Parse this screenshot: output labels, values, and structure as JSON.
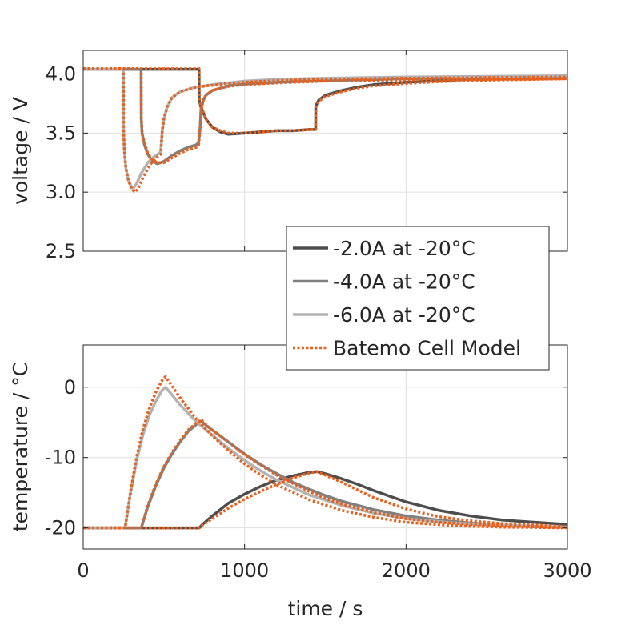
{
  "chart_data": [
    {
      "type": "line",
      "ylabel": "voltage / V",
      "xlim": [
        0,
        3000
      ],
      "ylim": [
        2.5,
        4.2
      ],
      "yticks": [
        2.5,
        3.0,
        3.5,
        4.0
      ],
      "ytick_labels": [
        "2.5",
        "3.0",
        "3.5",
        "4.0"
      ],
      "xticks": [
        0,
        1000,
        2000,
        3000
      ],
      "grid": true,
      "series": [
        {
          "name": "-2.0A at -20°C",
          "color": "#4d4d4d",
          "style": "solid",
          "x": [
            0,
            718,
            719,
            730,
            760,
            800,
            850,
            900,
            1000,
            1100,
            1200,
            1300,
            1400,
            1440,
            1441,
            1460,
            1500,
            1600,
            1700,
            1800,
            2000,
            2200,
            2400,
            2600,
            2800,
            3000
          ],
          "y": [
            4.04,
            4.04,
            3.78,
            3.72,
            3.62,
            3.55,
            3.51,
            3.49,
            3.5,
            3.51,
            3.52,
            3.52,
            3.53,
            3.53,
            3.73,
            3.78,
            3.82,
            3.86,
            3.89,
            3.91,
            3.93,
            3.945,
            3.955,
            3.96,
            3.965,
            3.97
          ]
        },
        {
          "name": "-4.0A at -20°C",
          "color": "#808080",
          "style": "solid",
          "x": [
            0,
            359,
            360,
            365,
            380,
            400,
            430,
            460,
            500,
            550,
            600,
            650,
            700,
            715,
            725,
            730,
            745,
            760,
            800,
            850,
            900,
            1000,
            1200,
            1500,
            2000,
            2500,
            3000
          ],
          "y": [
            4.04,
            4.04,
            3.62,
            3.5,
            3.4,
            3.32,
            3.26,
            3.24,
            3.26,
            3.31,
            3.35,
            3.38,
            3.4,
            3.42,
            3.55,
            3.7,
            3.78,
            3.82,
            3.86,
            3.88,
            3.9,
            3.915,
            3.93,
            3.945,
            3.96,
            3.97,
            3.975
          ]
        },
        {
          "name": "-6.0A at -20°C",
          "color": "#b3b3b3",
          "style": "solid",
          "x": [
            0,
            249,
            250,
            255,
            265,
            280,
            300,
            310,
            330,
            360,
            400,
            430,
            460,
            480,
            485,
            490,
            500,
            520,
            550,
            600,
            650,
            700,
            800,
            900,
            1000,
            1200,
            1500,
            2000,
            2500,
            3000
          ],
          "y": [
            4.04,
            4.04,
            3.55,
            3.35,
            3.2,
            3.1,
            3.04,
            3.03,
            3.07,
            3.16,
            3.25,
            3.29,
            3.32,
            3.34,
            3.42,
            3.52,
            3.62,
            3.72,
            3.8,
            3.85,
            3.87,
            3.89,
            3.91,
            3.925,
            3.94,
            3.955,
            3.965,
            3.975,
            3.98,
            3.985
          ]
        },
        {
          "name": "Batemo Cell Model",
          "color": "#e8601c",
          "style": "dotted",
          "x": [
            0,
            718,
            719,
            730,
            760,
            800,
            850,
            900,
            1000,
            1100,
            1200,
            1300,
            1400,
            1440,
            1441,
            1460,
            1500,
            1600,
            1700,
            1800,
            2000,
            2200,
            2400,
            2600,
            2800,
            3000
          ],
          "y": [
            4.045,
            4.045,
            3.8,
            3.73,
            3.62,
            3.55,
            3.52,
            3.5,
            3.5,
            3.51,
            3.52,
            3.52,
            3.53,
            3.53,
            3.72,
            3.77,
            3.81,
            3.85,
            3.88,
            3.9,
            3.92,
            3.935,
            3.945,
            3.95,
            3.955,
            3.96
          ]
        },
        {
          "name": "",
          "color": "#e8601c",
          "style": "dotted",
          "x": [
            0,
            359,
            360,
            365,
            380,
            400,
            430,
            460,
            500,
            550,
            600,
            650,
            700,
            715,
            725,
            730,
            745,
            760,
            800,
            850,
            900,
            1000,
            1200,
            1500,
            2000,
            2500,
            3000
          ],
          "y": [
            4.045,
            4.045,
            3.62,
            3.5,
            3.41,
            3.33,
            3.27,
            3.25,
            3.25,
            3.29,
            3.33,
            3.36,
            3.38,
            3.4,
            3.55,
            3.7,
            3.78,
            3.82,
            3.86,
            3.88,
            3.895,
            3.91,
            3.925,
            3.94,
            3.95,
            3.955,
            3.96
          ]
        },
        {
          "name": "",
          "color": "#e8601c",
          "style": "dotted",
          "x": [
            0,
            249,
            250,
            255,
            265,
            280,
            300,
            320,
            340,
            370,
            400,
            430,
            460,
            480,
            485,
            490,
            500,
            520,
            550,
            600,
            650,
            700,
            800,
            900,
            1000,
            1200,
            1500,
            2000,
            2500,
            3000
          ],
          "y": [
            4.045,
            4.045,
            3.55,
            3.35,
            3.2,
            3.1,
            3.03,
            3.0,
            3.03,
            3.12,
            3.2,
            3.26,
            3.3,
            3.32,
            3.42,
            3.52,
            3.62,
            3.72,
            3.8,
            3.85,
            3.87,
            3.89,
            3.905,
            3.92,
            3.93,
            3.945,
            3.955,
            3.965,
            3.97,
            3.975
          ]
        }
      ]
    },
    {
      "type": "line",
      "ylabel": "temperature / °C",
      "xlabel": "time / s",
      "xlim": [
        0,
        3000
      ],
      "ylim": [
        -23,
        6
      ],
      "yticks": [
        -20,
        -10,
        0
      ],
      "ytick_labels": [
        "-20",
        "-10",
        "0"
      ],
      "xticks": [
        0,
        1000,
        2000,
        3000
      ],
      "xtick_labels": [
        "0",
        "1000",
        "2000",
        "3000"
      ],
      "grid": true,
      "series": [
        {
          "name": "-2.0A at -20°C",
          "color": "#4d4d4d",
          "style": "solid",
          "x": [
            0,
            720,
            740,
            800,
            900,
            1000,
            1100,
            1200,
            1300,
            1400,
            1450,
            1500,
            1600,
            1700,
            1800,
            1900,
            2000,
            2200,
            2400,
            2600,
            2800,
            3000
          ],
          "y": [
            -20,
            -20,
            -19.5,
            -18.3,
            -16.5,
            -15.2,
            -14.1,
            -13.2,
            -12.6,
            -12.1,
            -12.0,
            -12.3,
            -13.0,
            -13.8,
            -14.7,
            -15.5,
            -16.3,
            -17.5,
            -18.3,
            -18.9,
            -19.2,
            -19.5
          ]
        },
        {
          "name": "-4.0A at -20°C",
          "color": "#808080",
          "style": "solid",
          "x": [
            0,
            360,
            400,
            450,
            500,
            550,
            600,
            650,
            700,
            730,
            760,
            800,
            900,
            1000,
            1100,
            1200,
            1300,
            1400,
            1500,
            1600,
            1800,
            2000,
            2200,
            2400,
            2600,
            2800,
            3000
          ],
          "y": [
            -20,
            -20,
            -17.0,
            -14.0,
            -11.5,
            -9.5,
            -7.8,
            -6.3,
            -5.3,
            -4.8,
            -5.4,
            -6.1,
            -7.8,
            -9.5,
            -11.0,
            -12.3,
            -13.5,
            -14.5,
            -15.4,
            -16.2,
            -17.4,
            -18.3,
            -18.9,
            -19.3,
            -19.6,
            -19.8,
            -19.9
          ]
        },
        {
          "name": "-6.0A at -20°C",
          "color": "#b3b3b3",
          "style": "solid",
          "x": [
            0,
            260,
            290,
            330,
            370,
            410,
            450,
            490,
            510,
            540,
            600,
            700,
            800,
            900,
            1000,
            1100,
            1200,
            1400,
            1600,
            1800,
            2000,
            2300,
            2600,
            3000
          ],
          "y": [
            -20,
            -20,
            -15.5,
            -10.5,
            -6.8,
            -4.0,
            -2.0,
            -0.4,
            0.0,
            -0.8,
            -2.5,
            -4.9,
            -6.8,
            -8.7,
            -10.4,
            -11.9,
            -13.2,
            -15.3,
            -16.8,
            -17.9,
            -18.7,
            -19.3,
            -19.6,
            -19.9
          ]
        },
        {
          "name": "Batemo Cell Model",
          "color": "#e8601c",
          "style": "dotted",
          "x": [
            0,
            720,
            740,
            800,
            900,
            1000,
            1100,
            1200,
            1300,
            1400,
            1450,
            1500,
            1600,
            1700,
            1800,
            1900,
            2000,
            2200,
            2400,
            2600,
            2800,
            3000
          ],
          "y": [
            -20,
            -20,
            -19.6,
            -18.7,
            -17.2,
            -15.9,
            -14.8,
            -13.8,
            -12.9,
            -12.2,
            -12.0,
            -12.5,
            -13.5,
            -14.6,
            -15.7,
            -16.5,
            -17.3,
            -18.4,
            -19.0,
            -19.4,
            -19.6,
            -19.8
          ]
        },
        {
          "name": "",
          "color": "#e8601c",
          "style": "dotted",
          "x": [
            0,
            360,
            400,
            450,
            500,
            550,
            600,
            650,
            700,
            730,
            760,
            800,
            900,
            1000,
            1100,
            1200,
            1300,
            1400,
            1500,
            1600,
            1800,
            2000,
            2200,
            2400,
            2600,
            2800,
            3000
          ],
          "y": [
            -20,
            -20,
            -16.8,
            -13.8,
            -11.3,
            -9.3,
            -7.6,
            -6.1,
            -5.1,
            -4.6,
            -5.3,
            -6.1,
            -7.8,
            -9.6,
            -11.1,
            -12.5,
            -13.7,
            -14.8,
            -15.8,
            -16.6,
            -17.8,
            -18.7,
            -19.2,
            -19.5,
            -19.7,
            -19.85,
            -19.95
          ]
        },
        {
          "name": "",
          "color": "#e8601c",
          "style": "dotted",
          "x": [
            0,
            260,
            290,
            330,
            370,
            410,
            450,
            490,
            510,
            540,
            600,
            700,
            800,
            900,
            1000,
            1100,
            1200,
            1400,
            1600,
            1800,
            2000,
            2300,
            2600,
            3000
          ],
          "y": [
            -20,
            -20,
            -15.3,
            -10.0,
            -6.0,
            -3.0,
            -0.7,
            1.0,
            1.5,
            0.5,
            -1.5,
            -4.5,
            -6.9,
            -9.0,
            -10.9,
            -12.5,
            -13.9,
            -16.0,
            -17.5,
            -18.5,
            -19.2,
            -19.7,
            -19.9,
            -20.0
          ]
        }
      ]
    }
  ],
  "legend": {
    "placement": "center-right",
    "entries": [
      {
        "label": "-2.0A at -20°C",
        "color": "#4d4d4d",
        "style": "solid"
      },
      {
        "label": "-4.0A at -20°C",
        "color": "#808080",
        "style": "solid"
      },
      {
        "label": "-6.0A at -20°C",
        "color": "#b3b3b3",
        "style": "solid"
      },
      {
        "label": "Batemo Cell Model",
        "color": "#e8601c",
        "style": "dotted"
      }
    ]
  }
}
